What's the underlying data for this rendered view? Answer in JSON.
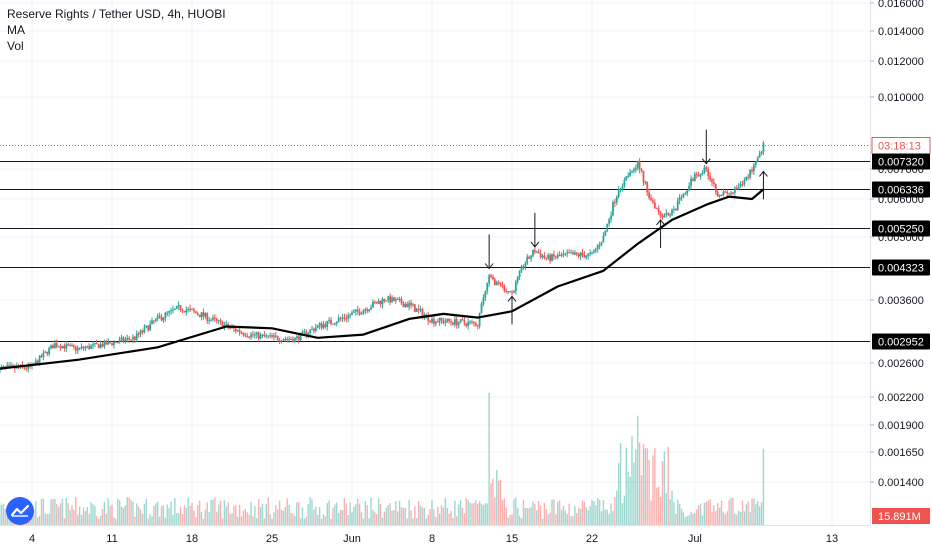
{
  "legend": {
    "title": "Reserve Rights / Tether USD, 4h, HUOBI",
    "indicators": [
      "MA",
      "Vol"
    ]
  },
  "colors": {
    "up": "#26a69a",
    "down": "#ef5350",
    "ma": "#000000",
    "level": "#131722",
    "current": "#ef5350",
    "grid": "#f0f3fa"
  },
  "chart_data": {
    "type": "candlestick",
    "symbol": "RSRUSDT",
    "timeframe": "4h",
    "exchange": "HUOBI",
    "x_ticks": [
      "4",
      "11",
      "18",
      "25",
      "Jun",
      "8",
      "15",
      "22",
      "Jul",
      "13"
    ],
    "price_ticks": [
      "0.016000",
      "0.014000",
      "0.012000",
      "0.010000",
      "0.007000",
      "0.006000",
      "0.005000",
      "0.003600",
      "0.002600",
      "0.002200",
      "0.001900",
      "0.001650",
      "0.001400"
    ],
    "horizontal_levels": [
      "0.007320",
      "0.006336",
      "0.005250",
      "0.004323",
      "0.002952"
    ],
    "countdown_label": "03:18:13",
    "volume_label": "15.891M",
    "price_path": [
      [
        "May 1",
        0.00253
      ],
      [
        "May 4",
        0.00255
      ],
      [
        "May 6",
        0.0029
      ],
      [
        "May 8",
        0.00282
      ],
      [
        "May 11",
        0.00292
      ],
      [
        "May 13",
        0.003
      ],
      [
        "May 15",
        0.0033
      ],
      [
        "May 17",
        0.00348
      ],
      [
        "May 19",
        0.00335
      ],
      [
        "May 21",
        0.00318
      ],
      [
        "May 23",
        0.00305
      ],
      [
        "May 25",
        0.003
      ],
      [
        "May 27",
        0.00298
      ],
      [
        "May 29",
        0.00318
      ],
      [
        "May 31",
        0.0033
      ],
      [
        "Jun 2",
        0.00345
      ],
      [
        "Jun 4",
        0.00363
      ],
      [
        "Jun 6",
        0.00352
      ],
      [
        "Jun 8",
        0.00328
      ],
      [
        "Jun 10",
        0.00325
      ],
      [
        "Jun 12",
        0.00322
      ],
      [
        "Jun 13",
        0.0041
      ],
      [
        "Jun 14",
        0.0039
      ],
      [
        "Jun 15",
        0.00375
      ],
      [
        "Jun 16",
        0.00438
      ],
      [
        "Jun 17",
        0.0047
      ],
      [
        "Jun 18",
        0.00452
      ],
      [
        "Jun 20",
        0.0046
      ],
      [
        "Jun 22",
        0.0046
      ],
      [
        "Jun 23",
        0.005
      ],
      [
        "Jun 24",
        0.006
      ],
      [
        "Jun 25",
        0.0068
      ],
      [
        "Jun 26",
        0.00722
      ],
      [
        "Jun 27",
        0.0061
      ],
      [
        "Jun 28",
        0.0056
      ],
      [
        "Jun 29",
        0.00565
      ],
      [
        "Jun 30",
        0.0061
      ],
      [
        "Jul 1",
        0.0068
      ],
      [
        "Jul 2",
        0.007
      ],
      [
        "Jul 3",
        0.0062
      ],
      [
        "Jul 4",
        0.00615
      ],
      [
        "Jul 5",
        0.0064
      ],
      [
        "Jul 6",
        0.007
      ],
      [
        "Jul 7",
        0.008
      ]
    ],
    "ma_path": [
      [
        "May 1",
        0.00253
      ],
      [
        "May 8",
        0.00265
      ],
      [
        "May 15",
        0.00285
      ],
      [
        "May 21",
        0.00318
      ],
      [
        "May 25",
        0.00315
      ],
      [
        "May 29",
        0.003
      ],
      [
        "Jun 2",
        0.00305
      ],
      [
        "Jun 6",
        0.0033
      ],
      [
        "Jun 9",
        0.00338
      ],
      [
        "Jun 12",
        0.00332
      ],
      [
        "Jun 15",
        0.00342
      ],
      [
        "Jun 19",
        0.0039
      ],
      [
        "Jun 23",
        0.00425
      ],
      [
        "Jun 26",
        0.00485
      ],
      [
        "Jun 29",
        0.00545
      ],
      [
        "Jul 2",
        0.00585
      ],
      [
        "Jul 4",
        0.00608
      ],
      [
        "Jul 6",
        0.006
      ],
      [
        "Jul 7",
        0.00632
      ]
    ],
    "volume_spikes": [
      [
        "Jun 13",
        0.00225
      ],
      [
        "Jun 26",
        0.002
      ],
      [
        "Jul 7",
        0.00168
      ]
    ],
    "annotations": [
      {
        "type": "arrow-down",
        "date": "Jun 13",
        "price": 0.0043
      },
      {
        "type": "arrow-down",
        "date": "Jun 17",
        "price": 0.00478
      },
      {
        "type": "arrow-down",
        "date": "Jul 2",
        "price": 0.00722
      },
      {
        "type": "arrow-up",
        "date": "Jun 15",
        "price": 0.00368
      },
      {
        "type": "arrow-up",
        "date": "Jun 28",
        "price": 0.00545
      },
      {
        "type": "arrow-up",
        "date": "Jul 7",
        "price": 0.00692
      }
    ]
  }
}
